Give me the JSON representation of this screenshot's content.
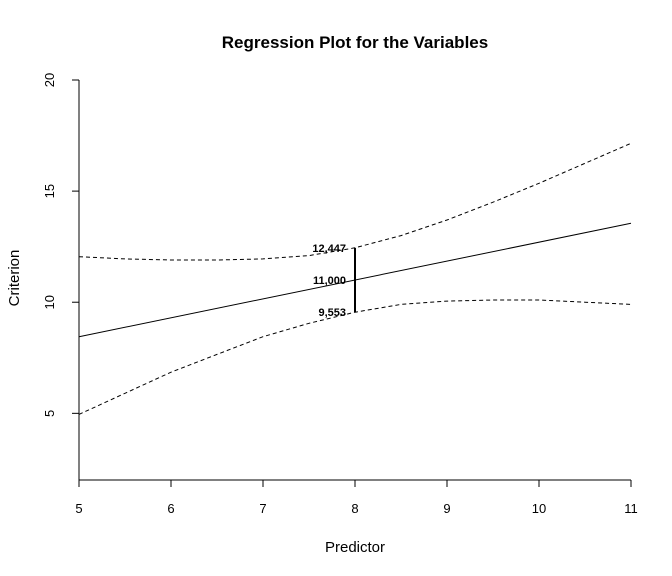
{
  "chart_data": {
    "type": "line",
    "title": "Regression Plot for the Variables",
    "xlabel": "Predictor",
    "ylabel": "Criterion",
    "xlim": [
      5,
      11
    ],
    "ylim": [
      2,
      20
    ],
    "x_ticks": [
      "5",
      "6",
      "7",
      "8",
      "9",
      "10",
      "11"
    ],
    "y_ticks": [
      "5",
      "10",
      "15",
      "20"
    ],
    "series": [
      {
        "role": "fit",
        "style": "solid",
        "x": [
          5,
          11
        ],
        "y": [
          8.45,
          13.55
        ]
      },
      {
        "role": "upper-band",
        "style": "dashed",
        "x": [
          5,
          5.5,
          6,
          6.5,
          7,
          7.5,
          8,
          8.5,
          9,
          9.5,
          10,
          10.5,
          11
        ],
        "y": [
          12.05,
          11.95,
          11.9,
          11.9,
          11.95,
          12.1,
          12.447,
          13.0,
          13.7,
          14.5,
          15.35,
          16.25,
          17.15
        ]
      },
      {
        "role": "lower-band",
        "style": "dashed",
        "x": [
          5,
          5.5,
          6,
          6.5,
          7,
          7.5,
          8,
          8.5,
          9,
          9.5,
          10,
          10.5,
          11
        ],
        "y": [
          4.95,
          5.9,
          6.85,
          7.65,
          8.45,
          9.05,
          9.553,
          9.9,
          10.05,
          10.1,
          10.1,
          10.0,
          9.9
        ]
      }
    ],
    "interval": {
      "x": 8,
      "upper": 12.447,
      "fit": 11.0,
      "lower": 9.553,
      "upper_label": "12,447",
      "fit_label": "11,000",
      "lower_label": "9,553"
    },
    "colors": {
      "line": "#000000",
      "background": "#ffffff"
    },
    "grid": false,
    "legend": "none"
  }
}
